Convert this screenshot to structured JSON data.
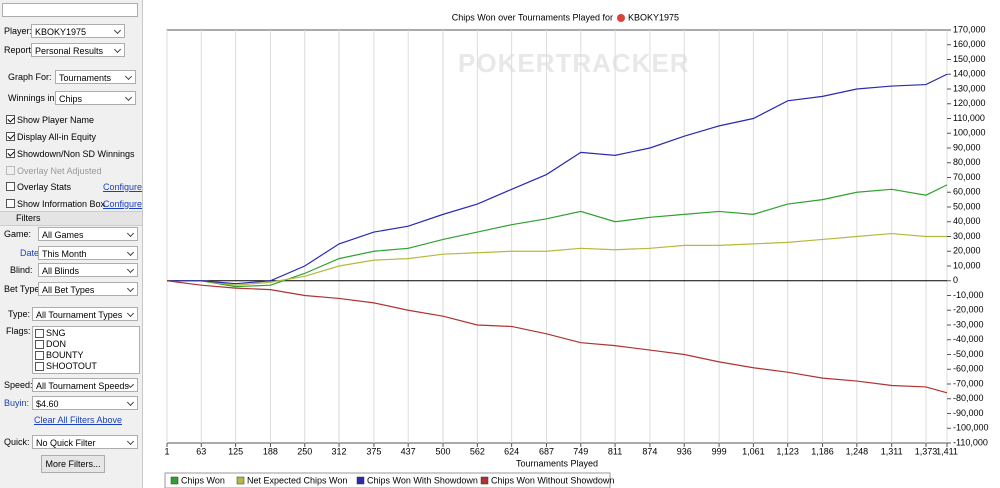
{
  "sidebar": {
    "player": {
      "label": "Player:",
      "value": "KBOKY1975"
    },
    "report": {
      "label": "Report:",
      "value": "Personal Results"
    },
    "graph_for": {
      "label": "Graph For:",
      "value": "Tournaments"
    },
    "winnings_in": {
      "label": "Winnings in:",
      "value": "Chips"
    },
    "options": [
      {
        "label": "Show Player Name",
        "checked": true
      },
      {
        "label": "Display All-in Equity",
        "checked": true
      },
      {
        "label": "Showdown/Non SD Winnings",
        "checked": true
      },
      {
        "label": "Overlay Net Adjusted",
        "checked": false,
        "disabled": true
      },
      {
        "label": "Overlay Stats",
        "checked": false,
        "link": "Configure"
      },
      {
        "label": "Show Information Box",
        "checked": false,
        "link": "Configure"
      }
    ],
    "filters_title": "Filters",
    "game": {
      "label": "Game:",
      "value": "All Games"
    },
    "date": {
      "label": "Date:",
      "value": "This Month"
    },
    "blind": {
      "label": "Blind:",
      "value": "All Blinds"
    },
    "bet_type": {
      "label": "Bet Type:",
      "value": "All Bet Types"
    },
    "type": {
      "label": "Type:",
      "value": "All Tournament Types"
    },
    "flags": {
      "label": "Flags:",
      "items": [
        "SNG",
        "DON",
        "BOUNTY",
        "SHOOTOUT"
      ]
    },
    "speed": {
      "label": "Speed:",
      "value": "All Tournament Speeds"
    },
    "buyin": {
      "label": "Buyin:",
      "value": "$4.60"
    },
    "clear_link": "Clear All Filters Above",
    "quick": {
      "label": "Quick:",
      "value": "No Quick Filter"
    },
    "more_button": "More Filters..."
  },
  "chart_data": {
    "type": "line",
    "title": "Chips Won over Tournaments Played for",
    "title_player": "KBOKY1975",
    "watermark": "POKERTRACKER",
    "x_label": "Tournaments Played",
    "x": [
      1,
      63,
      125,
      188,
      250,
      312,
      375,
      437,
      500,
      562,
      624,
      687,
      749,
      811,
      874,
      936,
      999,
      1061,
      1123,
      1186,
      1248,
      1311,
      1373,
      1411
    ],
    "xlim": [
      1,
      1411
    ],
    "xticks": [
      1,
      63,
      125,
      188,
      250,
      312,
      375,
      437,
      500,
      562,
      624,
      687,
      749,
      811,
      874,
      936,
      999,
      {
        "value": 1061,
        "label": "1,061"
      },
      {
        "value": 1123,
        "label": "1,123"
      },
      {
        "value": 1186,
        "label": "1,186"
      },
      {
        "value": 1248,
        "label": "1,248"
      },
      {
        "value": 1311,
        "label": "1,311"
      },
      {
        "value": 1373,
        "label": "1,373"
      },
      {
        "value": 1411,
        "label": "1,411"
      }
    ],
    "ylim": [
      -110000,
      170000
    ],
    "yticks": [
      {
        "value": -110000,
        "label": "-110,000"
      },
      {
        "value": -100000,
        "label": "-100,000"
      },
      {
        "value": -90000,
        "label": "-90,000"
      },
      {
        "value": -80000,
        "label": "-80,000"
      },
      {
        "value": -70000,
        "label": "-70,000"
      },
      {
        "value": -60000,
        "label": "-60,000"
      },
      {
        "value": -50000,
        "label": "-50,000"
      },
      {
        "value": -40000,
        "label": "-40,000"
      },
      {
        "value": -30000,
        "label": "-30,000"
      },
      {
        "value": -20000,
        "label": "-20,000"
      },
      {
        "value": -10000,
        "label": "-10,000"
      },
      0,
      {
        "value": 10000,
        "label": "10,000"
      },
      {
        "value": 20000,
        "label": "20,000"
      },
      {
        "value": 30000,
        "label": "30,000"
      },
      {
        "value": 40000,
        "label": "40,000"
      },
      {
        "value": 50000,
        "label": "50,000"
      },
      {
        "value": 60000,
        "label": "60,000"
      },
      {
        "value": 70000,
        "label": "70,000"
      },
      {
        "value": 80000,
        "label": "80,000"
      },
      {
        "value": 90000,
        "label": "90,000"
      },
      {
        "value": 100000,
        "label": "100,000"
      },
      {
        "value": 110000,
        "label": "110,000"
      },
      {
        "value": 120000,
        "label": "120,000"
      },
      {
        "value": 130000,
        "label": "130,000"
      },
      {
        "value": 140000,
        "label": "140,000"
      },
      {
        "value": 150000,
        "label": "150,000"
      },
      {
        "value": 160000,
        "label": "160,000"
      },
      {
        "value": 170000,
        "label": "170,000"
      }
    ],
    "grid": "x",
    "series": [
      {
        "name": "Chips Won",
        "color": "#2ea12e",
        "values": [
          0,
          0,
          -4000,
          -3000,
          5000,
          15000,
          20000,
          22000,
          28000,
          33000,
          38000,
          42000,
          47000,
          40000,
          43000,
          45000,
          47000,
          45000,
          52000,
          55000,
          60000,
          62000,
          58000,
          65000
        ]
      },
      {
        "name": "Net Expected Chips Won",
        "color": "#b8b83c",
        "values": [
          0,
          0,
          -3000,
          -1000,
          3000,
          10000,
          14000,
          15000,
          18000,
          19000,
          20000,
          20000,
          22000,
          21000,
          22000,
          24000,
          24000,
          25000,
          26000,
          28000,
          30000,
          32000,
          30000,
          30000
        ]
      },
      {
        "name": "Chips Won With Showdown",
        "color": "#2a2ab0",
        "values": [
          0,
          0,
          -2000,
          0,
          10000,
          25000,
          33000,
          37000,
          45000,
          52000,
          62000,
          72000,
          87000,
          85000,
          90000,
          98000,
          105000,
          110000,
          122000,
          125000,
          130000,
          132000,
          133000,
          140000
        ]
      },
      {
        "name": "Chips Won Without Showdown",
        "color": "#b03232",
        "values": [
          0,
          -3000,
          -5000,
          -6000,
          -10000,
          -12000,
          -15000,
          -20000,
          -24000,
          -30000,
          -31000,
          -36000,
          -42000,
          -44000,
          -47000,
          -50000,
          -55000,
          -59000,
          -62000,
          -66000,
          -68000,
          -71000,
          -72000,
          -76000
        ]
      }
    ]
  }
}
